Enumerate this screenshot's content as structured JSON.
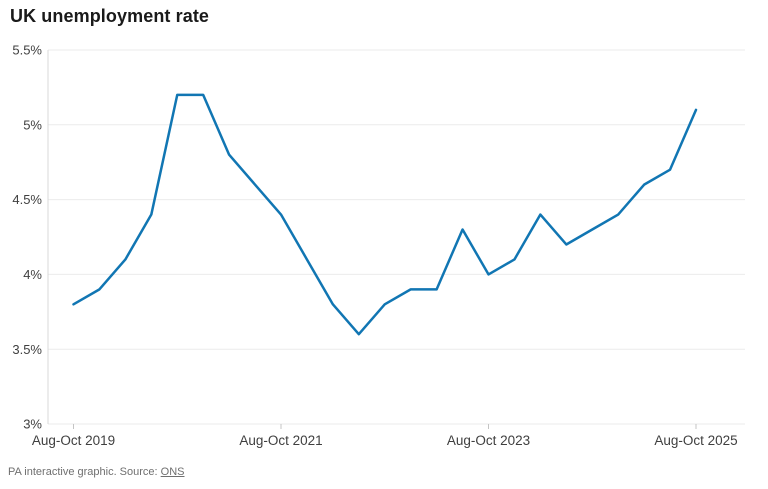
{
  "title": "UK unemployment rate",
  "footer": {
    "text": "PA interactive graphic. Source: ",
    "link_label": "ONS"
  },
  "chart_data": {
    "type": "line",
    "title": "UK unemployment rate",
    "unit": "%",
    "grid": "horizontal",
    "legend": "none",
    "ylim": [
      3.0,
      5.5
    ],
    "y_tick_labels": [
      "5.5%",
      "5%",
      "4.5%",
      "4%",
      "3.5%",
      "3%"
    ],
    "y_tick_values": [
      5.5,
      5.0,
      4.5,
      4.0,
      3.5,
      3.0
    ],
    "x_tick_labels": [
      "Aug-Oct 2019",
      "Aug-Oct 2021",
      "Aug-Oct 2023",
      "Aug-Oct 2025"
    ],
    "x_tick_indices": [
      0,
      8,
      16,
      24
    ],
    "series": [
      {
        "name": "UK unemployment rate",
        "color": "#1176b3",
        "values": [
          3.8,
          3.9,
          4.1,
          4.4,
          5.2,
          5.2,
          4.8,
          4.6,
          4.4,
          4.1,
          3.8,
          3.6,
          3.8,
          3.9,
          3.9,
          4.3,
          4.0,
          4.1,
          4.4,
          4.2,
          4.3,
          4.4,
          4.6,
          4.7,
          5.1
        ]
      }
    ],
    "colors": {
      "line": "#1176b3",
      "grid": "#ebebeb",
      "axis": "#d9d9d9",
      "tick": "#c4c4c4",
      "axis_label": "#3f3f3f"
    }
  }
}
